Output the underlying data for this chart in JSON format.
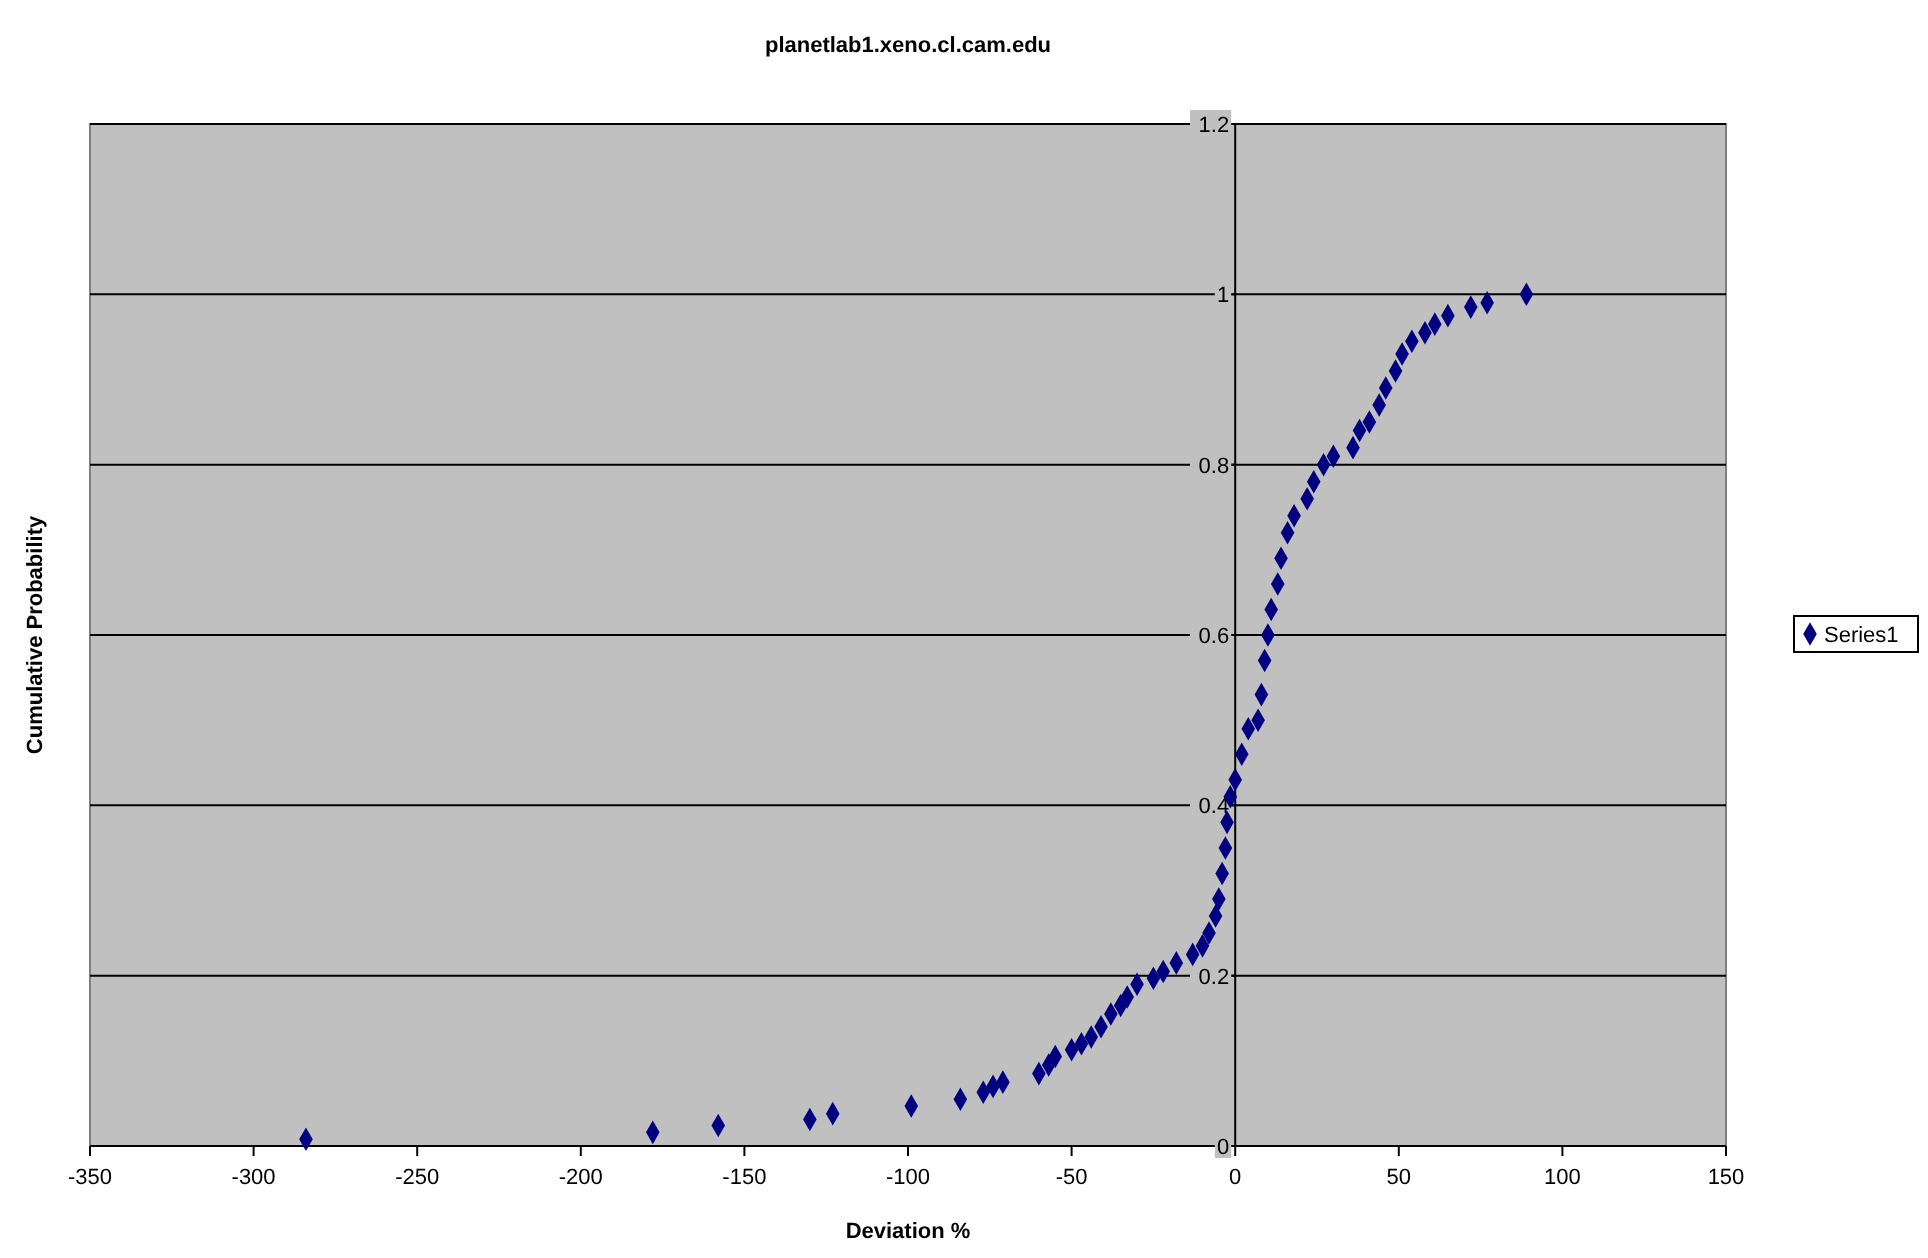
{
  "chart_data": {
    "type": "scatter",
    "title": "planetlab1.xeno.cl.cam.edu",
    "xlabel": "Deviation %",
    "ylabel": "Cumulative Probability",
    "xlim": [
      -350,
      150
    ],
    "xticks": [
      -350,
      -300,
      -250,
      -200,
      -150,
      -100,
      -50,
      0,
      50,
      100,
      150
    ],
    "ylim": [
      0,
      1.2
    ],
    "yticks": [
      0,
      0.2,
      0.4,
      0.6,
      0.8,
      1,
      1.2
    ],
    "grid": "y",
    "legend": "right",
    "marker": "diamond",
    "series": [
      {
        "name": "Series1",
        "color": "#000080",
        "x": [
          -284,
          -178,
          -158,
          -130,
          -123,
          -99,
          -84,
          -77,
          -74,
          -71,
          -60,
          -57,
          -55,
          -50,
          -47,
          -44,
          -41,
          -38,
          -35,
          -33,
          -30,
          -25,
          -22,
          -18,
          -13,
          -10,
          -8,
          -6,
          -5,
          -4,
          -3,
          -2.5,
          -1.5,
          0,
          2,
          4,
          7,
          8,
          9,
          10,
          11,
          13,
          14,
          16,
          18,
          22,
          24,
          27,
          30,
          36,
          38,
          41,
          44,
          46,
          49,
          51,
          54,
          58,
          61,
          65,
          72,
          77,
          89
        ],
        "values": [
          0.008,
          0.016,
          0.024,
          0.031,
          0.038,
          0.047,
          0.055,
          0.063,
          0.07,
          0.075,
          0.085,
          0.095,
          0.105,
          0.113,
          0.12,
          0.128,
          0.14,
          0.155,
          0.165,
          0.175,
          0.19,
          0.197,
          0.205,
          0.215,
          0.225,
          0.235,
          0.25,
          0.27,
          0.29,
          0.32,
          0.35,
          0.38,
          0.41,
          0.43,
          0.46,
          0.49,
          0.5,
          0.53,
          0.57,
          0.6,
          0.63,
          0.66,
          0.69,
          0.72,
          0.74,
          0.76,
          0.78,
          0.8,
          0.81,
          0.82,
          0.84,
          0.85,
          0.87,
          0.89,
          0.91,
          0.93,
          0.945,
          0.955,
          0.965,
          0.975,
          0.985,
          0.99,
          1
        ]
      }
    ]
  }
}
